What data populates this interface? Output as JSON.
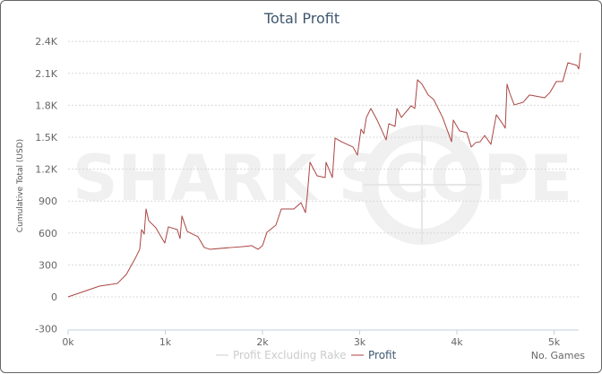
{
  "chart_data": {
    "type": "line",
    "title": "Total Profit",
    "xlabel": "No. Games",
    "ylabel": "Cumulative Total (USD)",
    "watermark": "SHARK SCOPE",
    "xlim": [
      0,
      5300
    ],
    "ylim": [
      -300,
      2400
    ],
    "x_ticks": [
      0,
      1000,
      2000,
      3000,
      4000,
      5000
    ],
    "x_tick_labels": [
      "0k",
      "1k",
      "2k",
      "3k",
      "4k",
      "5k"
    ],
    "y_ticks": [
      -300,
      0,
      300,
      600,
      900,
      1200,
      1500,
      1800,
      2100,
      2400
    ],
    "y_tick_labels": [
      "-300",
      "0",
      "300",
      "600",
      "900",
      "1.2K",
      "1.5K",
      "1.8K",
      "2.1K",
      "2.4K"
    ],
    "grid": "horizontal dashed",
    "legend_position": "bottom",
    "series": [
      {
        "name": "Profit Excluding Rake",
        "color": "#cccccc",
        "x": [],
        "y": []
      },
      {
        "name": "Profit",
        "color": "#aa4643",
        "x": [
          0,
          323,
          507,
          599,
          691,
          737,
          756,
          783,
          802,
          829,
          903,
          995,
          1032,
          1124,
          1152,
          1171,
          1226,
          1336,
          1401,
          1456,
          1677,
          1797,
          1889,
          1954,
          2000,
          2046,
          2138,
          2194,
          2323,
          2396,
          2442,
          2461,
          2489,
          2562,
          2645,
          2654,
          2719,
          2747,
          2811,
          2931,
          2977,
          3014,
          3042,
          3069,
          3115,
          3180,
          3272,
          3300,
          3364,
          3383,
          3429,
          3530,
          3567,
          3595,
          3641,
          3705,
          3761,
          3853,
          3945,
          3963,
          4028,
          4102,
          4148,
          4194,
          4240,
          4286,
          4350,
          4406,
          4470,
          4498,
          4516,
          4544,
          4590,
          4682,
          4747,
          4903,
          4959,
          5023,
          5088,
          5143,
          5235,
          5254,
          5272
        ],
        "y": [
          0,
          101,
          126,
          211,
          362,
          447,
          632,
          590,
          826,
          717,
          649,
          506,
          658,
          632,
          548,
          759,
          615,
          565,
          464,
          447,
          464,
          472,
          481,
          447,
          481,
          607,
          674,
          826,
          826,
          885,
          792,
          953,
          1265,
          1138,
          1121,
          1265,
          1121,
          1492,
          1458,
          1408,
          1332,
          1576,
          1534,
          1686,
          1770,
          1661,
          1475,
          1627,
          1602,
          1770,
          1686,
          1796,
          1770,
          2040,
          1998,
          1897,
          1855,
          1686,
          1458,
          1661,
          1560,
          1543,
          1408,
          1450,
          1458,
          1517,
          1433,
          1711,
          1627,
          1585,
          1998,
          1914,
          1804,
          1829,
          1897,
          1871,
          1922,
          2023,
          2023,
          2200,
          2175,
          2141,
          2293
        ]
      }
    ]
  }
}
